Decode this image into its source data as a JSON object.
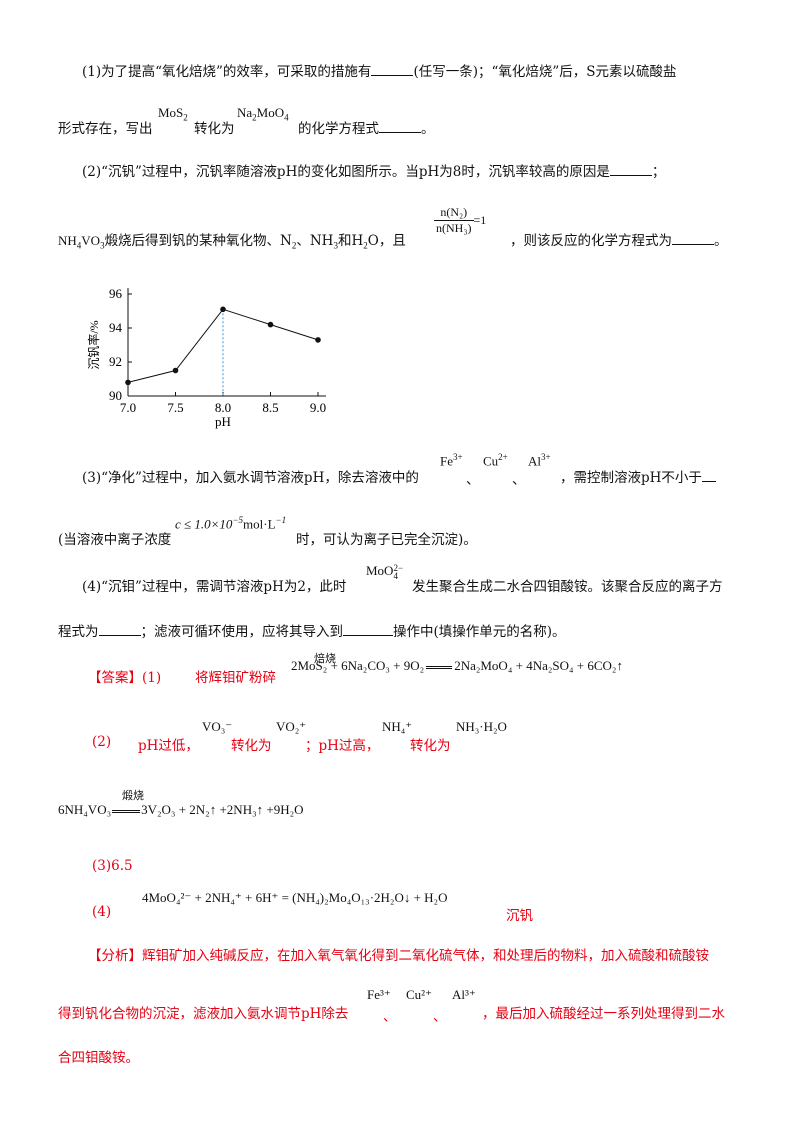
{
  "q1": {
    "line1": "(1)为了提高“氧化焙烧”的效率，可采取的措施有",
    "line1b": "(任写一条)；“氧化焙烧”后，S元素以硫酸盐",
    "line2a": "形式存在，写出",
    "mos2": "MoS",
    "mos2_sub": "2",
    "line2b": "转化为",
    "na2moo4": "Na",
    "na2moo4_sub1": "2",
    "na2moo4_mid": "MoO",
    "na2moo4_sub2": "4",
    "line2c": "的化学方程式",
    "line2d": "。"
  },
  "q2": {
    "line1": "(2)“沉钒”过程中，沉钒率随溶液pH的变化如图所示。当pH为8时，沉钒率较高的原因是",
    "line1_end": "；",
    "line2a": "NH",
    "line2a_sub1": "4",
    "line2a_mid": "VO",
    "line2a_sub2": "3",
    "line2b": "煅烧后得到钒的某种氧化物、N",
    "line2b_sub": "2",
    "line2c": "、NH",
    "line2c_sub": "3",
    "line2d": "和H",
    "line2d_sub": "2",
    "line2e": "O，且",
    "frac_num": "n(N₂)",
    "frac_den": "n(NH₃)",
    "frac_eq": "=1",
    "line2f": "，则该反应的化学方程式为",
    "line2g": "。"
  },
  "chart_data": {
    "type": "line",
    "x": [
      7.0,
      7.5,
      8.0,
      8.5,
      9.0
    ],
    "values": [
      90.8,
      91.5,
      95.1,
      94.2,
      93.3
    ],
    "xlabel": "pH",
    "ylabel": "沉钒率/%",
    "xlim": [
      7.0,
      9.0
    ],
    "ylim": [
      90,
      96
    ],
    "x_ticks": [
      "7.0",
      "7.5",
      "8.0",
      "8.5",
      "9.0"
    ],
    "y_ticks": [
      "90",
      "92",
      "94",
      "96"
    ],
    "marker_line_x": 8.0,
    "grid": false,
    "colors": {
      "line": "#111111",
      "marker_line": "#3b9be0"
    }
  },
  "q3": {
    "line1a": "(3)“净化”过程中，加入氨水调节溶液pH，除去溶液中的",
    "fe": "Fe",
    "fe_sup": "3+",
    "sep1": "、",
    "cu": "Cu",
    "cu_sup": "2+",
    "sep2": "、",
    "al": "Al",
    "al_sup": "3+",
    "line1b": "，需控制溶液pH不小于",
    "line2a": "(当溶液中离子浓度",
    "conc": "c ≤ 1.0×10",
    "conc_sup": "−5",
    "conc_unit": "mol·L",
    "conc_unit_sup": "−1",
    "line2b": "时，可认为离子已完全沉淀)。"
  },
  "q4": {
    "line1a": "(4)“沉钼”过程中，需调节溶液pH为2，此时",
    "moo4": "MoO",
    "moo4_sup": "2−",
    "moo4_sub": "4",
    "line1b": "发生聚合生成二水合四钼酸铵。该聚合反应的离子方",
    "line2a": "程式为",
    "line2b": "；滤液可循环使用，应将其导入到",
    "line2c": "操作中(填操作单元的名称)。"
  },
  "answer": {
    "label": "【答案】",
    "a1_num": "(1)",
    "a1_text": "将辉钼矿粉碎",
    "eq1": "2MoS₂ + 6Na₂CO₃ + 9O₂ ══ 2Na₂MoO₄ + 4Na₂SO₄ + 6CO₂↑",
    "eq1_cond": "焙烧",
    "eq1_lhs": "2MoS₂ + 6Na₂CO₃ + 9O₂",
    "eq1_rhs": "2Na₂MoO₄ + 4Na₂SO₄ + 6CO₂↑",
    "a2_num": "(2)",
    "a2_t1": "pH过低，",
    "a2_vo3": "VO₃⁻",
    "a2_t2": "转化为",
    "a2_vo2": "VO₂⁺",
    "a2_t3": "；pH过高，",
    "a2_nh4": "NH₄⁺",
    "a2_t4": "转化为",
    "a2_nh3h2o": "NH₃·H₂O",
    "eq2_cond": "煅烧",
    "eq2_lhs": "6NH₄VO₃",
    "eq2_rhs": "3V₂O₃ + 2N₂↑ +2NH₃↑ +9H₂O",
    "a3": "(3)6.5",
    "a4_num": "(4)",
    "eq4": "4MoO₄²⁻ + 2NH₄⁺ + 6H⁺ = (NH₄)₂Mo₄O₁₃·2H₂O↓ + H₂O",
    "a4_op": "沉钒"
  },
  "analysis": {
    "label": "【分析】",
    "line1": "辉钼矿加入纯碱反应，在加入氧气氧化得到二氧化硫气体，和处理后的物料，加入硫酸和硫酸铵",
    "line2a": "得到钒化合物的沉淀，滤液加入氨水调节pH除去",
    "fe": "Fe³⁺",
    "sep1": "、",
    "cu": "Cu²⁺",
    "sep2": "、",
    "al": "Al³⁺",
    "line2b": "，最后加入硫酸经过一系列处理得到二水",
    "line3": "合四钼酸铵。"
  }
}
